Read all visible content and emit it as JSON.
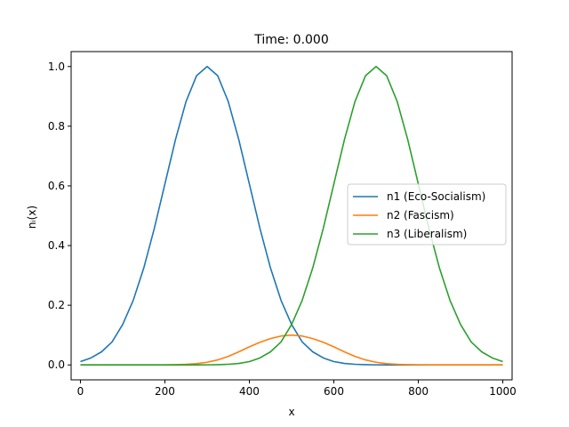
{
  "chart_data": {
    "type": "line",
    "title": "Time: 0.000",
    "xlabel": "x",
    "ylabel": "nᵢ(x)",
    "xlim": [
      -22,
      1022
    ],
    "ylim": [
      -0.05,
      1.05
    ],
    "xticks": [
      0,
      200,
      400,
      600,
      800,
      1000
    ],
    "yticks": [
      0.0,
      0.2,
      0.4,
      0.6,
      0.8,
      1.0
    ],
    "xtick_labels": [
      "0",
      "200",
      "400",
      "600",
      "800",
      "1000"
    ],
    "ytick_labels": [
      "0.0",
      "0.2",
      "0.4",
      "0.6",
      "0.8",
      "1.0"
    ],
    "grid": false,
    "legend": "center-right",
    "x": [
      0,
      25,
      50,
      75,
      100,
      125,
      150,
      175,
      200,
      225,
      250,
      275,
      300,
      325,
      350,
      375,
      400,
      425,
      450,
      475,
      500,
      525,
      550,
      575,
      600,
      625,
      650,
      675,
      700,
      725,
      750,
      775,
      800,
      825,
      850,
      875,
      900,
      925,
      950,
      975,
      1000
    ],
    "series": [
      {
        "name": "n1 (Eco-Socialism)",
        "color": "#1f77b4",
        "values": [
          0.0111,
          0.0235,
          0.0439,
          0.0773,
          0.1353,
          0.2163,
          0.3247,
          0.4578,
          0.6065,
          0.7548,
          0.8825,
          0.9692,
          1.0,
          0.9692,
          0.8825,
          0.7548,
          0.6065,
          0.4578,
          0.3247,
          0.2163,
          0.1353,
          0.0773,
          0.0439,
          0.0235,
          0.0111,
          0.005,
          0.0022,
          0.0009,
          0.0003,
          0.0001,
          0.0,
          0.0,
          0.0,
          0.0,
          0.0,
          0.0,
          0.0,
          0.0,
          0.0,
          0.0,
          0.0
        ]
      },
      {
        "name": "n2 (Fascism)",
        "color": "#ff7f0e",
        "values": [
          0.0,
          0.0,
          0.0,
          0.0,
          0.0,
          0.0,
          0.0,
          0.0001,
          0.0003,
          0.0008,
          0.0019,
          0.0043,
          0.0089,
          0.0168,
          0.0286,
          0.0438,
          0.0607,
          0.076,
          0.0882,
          0.0969,
          0.1,
          0.0969,
          0.0882,
          0.076,
          0.0607,
          0.0438,
          0.0286,
          0.0168,
          0.0089,
          0.0043,
          0.0019,
          0.0008,
          0.0003,
          0.0001,
          0.0,
          0.0,
          0.0,
          0.0,
          0.0,
          0.0,
          0.0
        ]
      },
      {
        "name": "n3 (Liberalism)",
        "color": "#2ca02c",
        "values": [
          0.0,
          0.0,
          0.0,
          0.0,
          0.0,
          0.0,
          0.0,
          0.0,
          0.0,
          0.0,
          0.0,
          0.0001,
          0.0003,
          0.0009,
          0.0022,
          0.005,
          0.0111,
          0.0235,
          0.0439,
          0.0773,
          0.1353,
          0.2163,
          0.3247,
          0.4578,
          0.6065,
          0.7548,
          0.8825,
          0.9692,
          1.0,
          0.9692,
          0.8825,
          0.7548,
          0.6065,
          0.4578,
          0.3247,
          0.2163,
          0.1353,
          0.0773,
          0.0439,
          0.0235,
          0.0111
        ]
      }
    ]
  }
}
